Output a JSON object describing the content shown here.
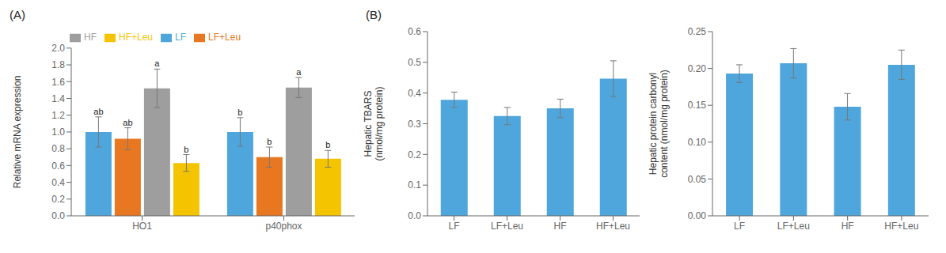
{
  "chart_data": [
    {
      "type": "bar",
      "title": "(A)",
      "categories": [
        "HO1",
        "p40phox"
      ],
      "series": [
        {
          "name": "LF",
          "color": "#4EA6DC",
          "values": [
            1.0,
            1.0
          ],
          "errors": [
            0.18,
            0.17
          ],
          "annotations": [
            "ab",
            "b"
          ]
        },
        {
          "name": "LF+Leu",
          "color": "#E87722",
          "values": [
            0.92,
            0.7
          ],
          "errors": [
            0.13,
            0.12
          ],
          "annotations": [
            "ab",
            "b"
          ]
        },
        {
          "name": "HF",
          "color": "#9E9E9E",
          "values": [
            1.52,
            1.53
          ],
          "errors": [
            0.23,
            0.12
          ],
          "annotations": [
            "a",
            "a"
          ]
        },
        {
          "name": "HF+Leu",
          "color": "#F5C400",
          "values": [
            0.63,
            0.68
          ],
          "errors": [
            0.1,
            0.1
          ],
          "annotations": [
            "b",
            "b"
          ]
        }
      ],
      "ylabel": "Relative mRNA expression",
      "ylim": [
        0,
        2.0
      ],
      "yticks": [
        {
          "value": 0.0,
          "label": "0.0"
        },
        0.2,
        0.4,
        0.6,
        0.8,
        {
          "value": 1.0,
          "label": "1.0"
        },
        1.2,
        1.4,
        1.6,
        1.8,
        {
          "value": 2.0,
          "label": "2.0"
        }
      ],
      "legend": "upper left",
      "grid": false
    },
    {
      "type": "bar",
      "title": "(B)",
      "categories": [
        "LF",
        "LF+Leu",
        "HF",
        "HF+Leu"
      ],
      "values": [
        0.378,
        0.325,
        0.35,
        0.447
      ],
      "errors": [
        0.025,
        0.028,
        0.03,
        0.058
      ],
      "color": "#4EA6DC",
      "ylabel": "Hepatic TBARS\n(nmol/mg protein)",
      "ylim": [
        0,
        0.6
      ],
      "yticks": [
        {
          "value": 0.0,
          "label": "0.0"
        },
        0.1,
        0.2,
        0.3,
        0.4,
        0.5,
        0.6
      ],
      "grid": false
    },
    {
      "type": "bar",
      "categories": [
        "LF",
        "LF+Leu",
        "HF",
        "HF+Leu"
      ],
      "values": [
        0.193,
        0.207,
        0.148,
        0.205
      ],
      "errors": [
        0.012,
        0.02,
        0.018,
        0.02
      ],
      "color": "#4EA6DC",
      "ylabel": "Hepatic protein carbonyl\ncontent (nmol/mg protein)",
      "ylim": [
        0,
        0.25
      ],
      "yticks": [
        {
          "value": 0.0,
          "label": "0.00"
        },
        0.05,
        {
          "value": 0.1,
          "label": "0.10"
        },
        0.15,
        {
          "value": 0.2,
          "label": "0.20"
        },
        0.25
      ],
      "grid": false
    }
  ]
}
